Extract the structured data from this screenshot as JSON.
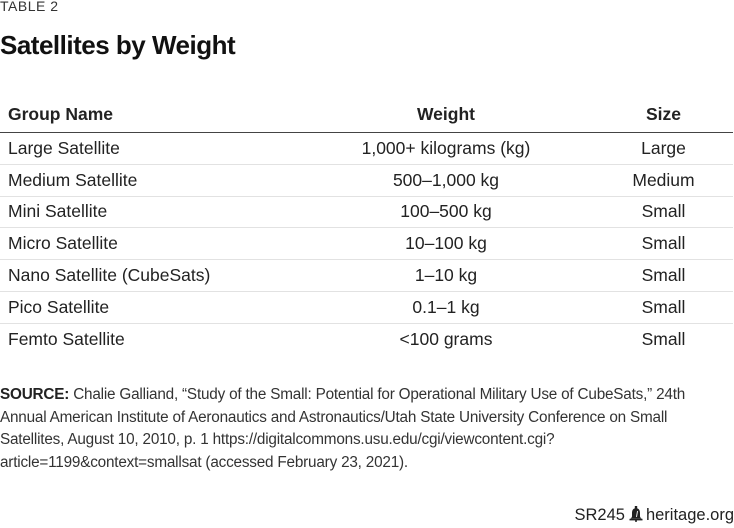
{
  "header": {
    "table_label": "TABLE 2",
    "title": "Satellites by Weight"
  },
  "table": {
    "columns": [
      "Group Name",
      "Weight",
      "Size"
    ],
    "rows": [
      [
        "Large Satellite",
        "1,000+ kilograms (kg)",
        "Large"
      ],
      [
        "Medium Satellite",
        "500–1,000 kg",
        "Medium"
      ],
      [
        "Mini Satellite",
        "100–500 kg",
        "Small"
      ],
      [
        "Micro Satellite",
        "10–100 kg",
        "Small"
      ],
      [
        "Nano Satellite (CubeSats)",
        "1–10 kg",
        "Small"
      ],
      [
        "Pico Satellite",
        "0.1–1 kg",
        "Small"
      ],
      [
        "Femto Satellite",
        "<100 grams",
        "Small"
      ]
    ]
  },
  "source": {
    "label": "SOURCE:",
    "text": "Chalie Galliand, “Study of the Small: Potential for Operational Military Use of CubeSats,” 24th Annual American Institute of Aeronautics and Astronautics/Utah State University Conference on Small Satellites, August 10, 2010, p. 1 https://digitalcommons.usu.edu/cgi/viewcontent.cgi?article=1199&context=smallsat (accessed February 23, 2021)."
  },
  "footer": {
    "report_id": "SR245",
    "bell_icon": "liberty-bell-icon",
    "site": "heritage.org"
  }
}
